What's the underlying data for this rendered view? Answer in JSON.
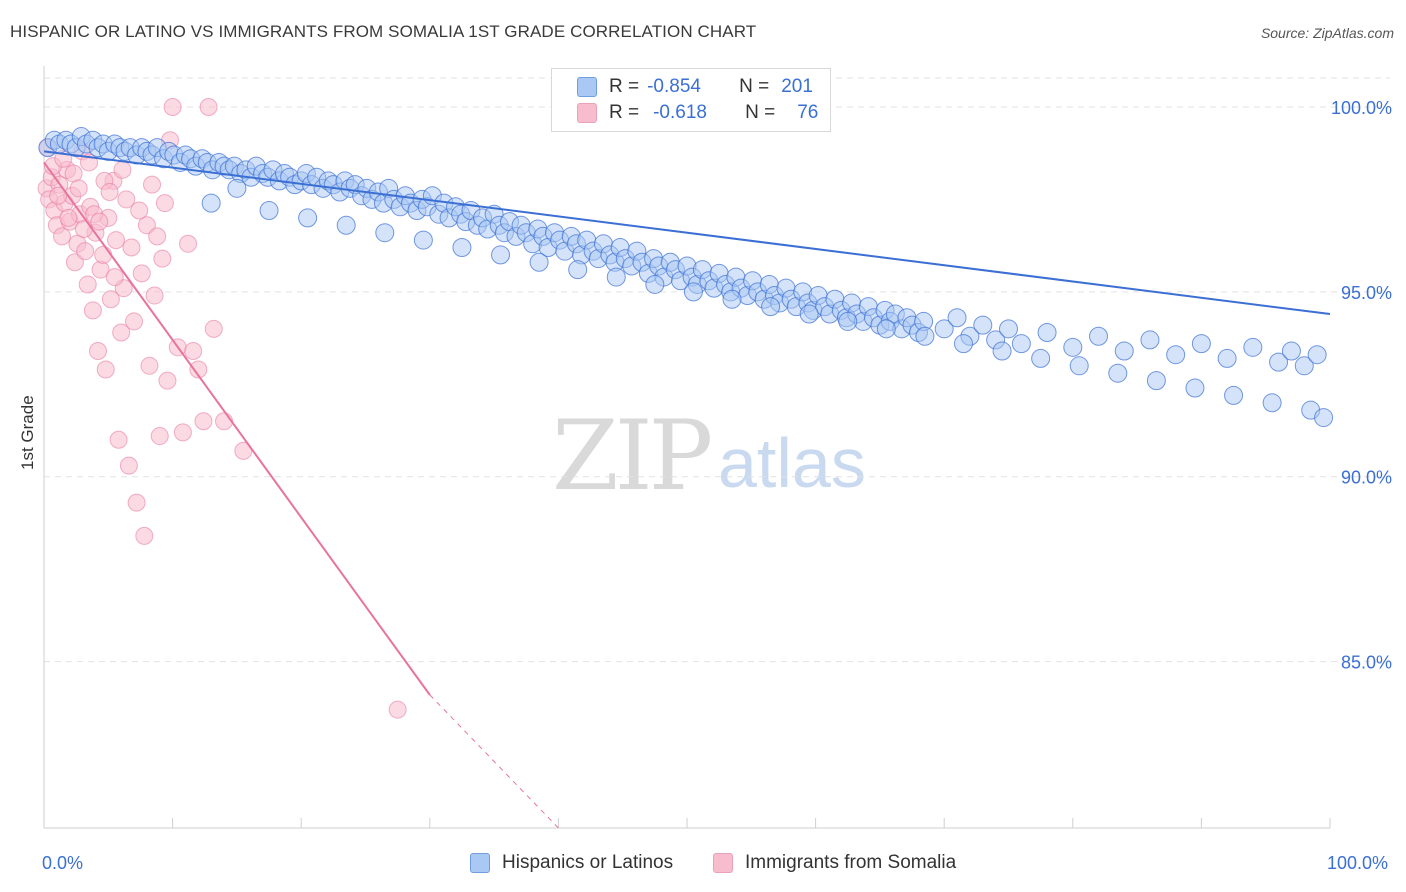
{
  "title": "HISPANIC OR LATINO VS IMMIGRANTS FROM SOMALIA 1ST GRADE CORRELATION CHART",
  "source": "Source: ZipAtlas.com",
  "watermark": {
    "zip": "ZIP",
    "atlas": "atlas"
  },
  "legend": {
    "r_label": "R =",
    "n_label": "N =",
    "rows": [
      {
        "r": "-0.854",
        "n": "201"
      },
      {
        "r": "-0.618",
        "n": "76"
      }
    ]
  },
  "colors": {
    "blue": "#3b6fd4",
    "blue_fill": "#a9c8f3",
    "pink": "#e8739c",
    "pink_fill": "#f7bccd",
    "grid": "#e2e2e2"
  },
  "chart_data": {
    "type": "scatter",
    "title": "HISPANIC OR LATINO VS IMMIGRANTS FROM SOMALIA 1ST GRADE CORRELATION CHART",
    "xlabel": "",
    "ylabel": "1st Grade",
    "xlim": [
      0,
      100
    ],
    "ylim": [
      80.5,
      101.0
    ],
    "x_ticks_labels": [
      "0.0%",
      "100.0%"
    ],
    "y_ticks": [
      85,
      90,
      95,
      100
    ],
    "y_tick_labels": [
      "85.0%",
      "90.0%",
      "95.0%",
      "100.0%"
    ],
    "grid": true,
    "legend_position": "top-center",
    "series": [
      {
        "name": "Hispanics or Latinos",
        "r": -0.854,
        "n": 201,
        "trend": {
          "x": [
            0,
            100
          ],
          "y": [
            98.8,
            94.4
          ]
        },
        "points": [
          [
            0.3,
            98.9
          ],
          [
            0.8,
            99.1
          ],
          [
            1.2,
            99.0
          ],
          [
            1.7,
            99.1
          ],
          [
            2.1,
            99.0
          ],
          [
            2.5,
            98.9
          ],
          [
            2.9,
            99.2
          ],
          [
            3.3,
            99.0
          ],
          [
            3.8,
            99.1
          ],
          [
            4.2,
            98.9
          ],
          [
            4.6,
            99.0
          ],
          [
            5.0,
            98.8
          ],
          [
            5.5,
            99.0
          ],
          [
            5.9,
            98.9
          ],
          [
            6.3,
            98.8
          ],
          [
            6.7,
            98.9
          ],
          [
            7.2,
            98.7
          ],
          [
            7.6,
            98.9
          ],
          [
            8.0,
            98.8
          ],
          [
            8.4,
            98.7
          ],
          [
            8.8,
            98.9
          ],
          [
            9.3,
            98.6
          ],
          [
            9.7,
            98.8
          ],
          [
            10.1,
            98.7
          ],
          [
            10.6,
            98.5
          ],
          [
            11.0,
            98.7
          ],
          [
            11.4,
            98.6
          ],
          [
            11.8,
            98.4
          ],
          [
            12.3,
            98.6
          ],
          [
            12.7,
            98.5
          ],
          [
            13.1,
            98.3
          ],
          [
            13.6,
            98.5
          ],
          [
            14.0,
            98.4
          ],
          [
            14.4,
            98.3
          ],
          [
            14.8,
            98.4
          ],
          [
            15.3,
            98.2
          ],
          [
            15.7,
            98.3
          ],
          [
            16.1,
            98.1
          ],
          [
            16.5,
            98.4
          ],
          [
            17.0,
            98.2
          ],
          [
            17.4,
            98.1
          ],
          [
            17.8,
            98.3
          ],
          [
            18.3,
            98.0
          ],
          [
            18.7,
            98.2
          ],
          [
            19.1,
            98.1
          ],
          [
            19.5,
            97.9
          ],
          [
            20.0,
            98.0
          ],
          [
            20.4,
            98.2
          ],
          [
            20.8,
            97.9
          ],
          [
            21.2,
            98.1
          ],
          [
            21.7,
            97.8
          ],
          [
            22.1,
            98.0
          ],
          [
            22.5,
            97.9
          ],
          [
            23.0,
            97.7
          ],
          [
            23.4,
            98.0
          ],
          [
            23.8,
            97.8
          ],
          [
            24.2,
            97.9
          ],
          [
            24.7,
            97.6
          ],
          [
            25.1,
            97.8
          ],
          [
            25.5,
            97.5
          ],
          [
            26.0,
            97.7
          ],
          [
            26.4,
            97.4
          ],
          [
            26.8,
            97.8
          ],
          [
            27.2,
            97.5
          ],
          [
            27.7,
            97.3
          ],
          [
            28.1,
            97.6
          ],
          [
            28.5,
            97.4
          ],
          [
            29.0,
            97.2
          ],
          [
            29.4,
            97.5
          ],
          [
            29.8,
            97.3
          ],
          [
            30.2,
            97.6
          ],
          [
            30.7,
            97.1
          ],
          [
            31.1,
            97.4
          ],
          [
            31.5,
            97.0
          ],
          [
            32.0,
            97.3
          ],
          [
            32.4,
            97.1
          ],
          [
            32.8,
            96.9
          ],
          [
            33.2,
            97.2
          ],
          [
            33.7,
            96.8
          ],
          [
            34.1,
            97.0
          ],
          [
            34.5,
            96.7
          ],
          [
            35.0,
            97.1
          ],
          [
            35.4,
            96.8
          ],
          [
            35.8,
            96.6
          ],
          [
            36.2,
            96.9
          ],
          [
            36.7,
            96.5
          ],
          [
            37.1,
            96.8
          ],
          [
            37.5,
            96.6
          ],
          [
            38.0,
            96.3
          ],
          [
            38.4,
            96.7
          ],
          [
            38.8,
            96.5
          ],
          [
            39.2,
            96.2
          ],
          [
            39.7,
            96.6
          ],
          [
            40.1,
            96.4
          ],
          [
            40.5,
            96.1
          ],
          [
            41.0,
            96.5
          ],
          [
            41.4,
            96.3
          ],
          [
            41.8,
            96.0
          ],
          [
            42.2,
            96.4
          ],
          [
            42.7,
            96.1
          ],
          [
            43.1,
            95.9
          ],
          [
            43.5,
            96.3
          ],
          [
            44.0,
            96.0
          ],
          [
            44.4,
            95.8
          ],
          [
            44.8,
            96.2
          ],
          [
            45.2,
            95.9
          ],
          [
            45.7,
            95.7
          ],
          [
            46.1,
            96.1
          ],
          [
            46.5,
            95.8
          ],
          [
            47.0,
            95.5
          ],
          [
            47.4,
            95.9
          ],
          [
            47.8,
            95.7
          ],
          [
            48.2,
            95.4
          ],
          [
            48.7,
            95.8
          ],
          [
            49.1,
            95.6
          ],
          [
            49.5,
            95.3
          ],
          [
            50.0,
            95.7
          ],
          [
            50.4,
            95.4
          ],
          [
            50.8,
            95.2
          ],
          [
            51.2,
            95.6
          ],
          [
            51.7,
            95.3
          ],
          [
            52.1,
            95.1
          ],
          [
            52.5,
            95.5
          ],
          [
            53.0,
            95.2
          ],
          [
            53.4,
            95.0
          ],
          [
            53.8,
            95.4
          ],
          [
            54.2,
            95.1
          ],
          [
            54.7,
            94.9
          ],
          [
            55.1,
            95.3
          ],
          [
            55.5,
            95.0
          ],
          [
            56.0,
            94.8
          ],
          [
            56.4,
            95.2
          ],
          [
            56.8,
            94.9
          ],
          [
            57.2,
            94.7
          ],
          [
            57.7,
            95.1
          ],
          [
            58.1,
            94.8
          ],
          [
            58.5,
            94.6
          ],
          [
            59.0,
            95.0
          ],
          [
            59.4,
            94.7
          ],
          [
            59.8,
            94.5
          ],
          [
            60.2,
            94.9
          ],
          [
            60.7,
            94.6
          ],
          [
            61.1,
            94.4
          ],
          [
            61.5,
            94.8
          ],
          [
            62.0,
            94.5
          ],
          [
            62.4,
            94.3
          ],
          [
            62.8,
            94.7
          ],
          [
            63.2,
            94.4
          ],
          [
            63.7,
            94.2
          ],
          [
            64.1,
            94.6
          ],
          [
            64.5,
            94.3
          ],
          [
            65.0,
            94.1
          ],
          [
            65.4,
            94.5
          ],
          [
            65.8,
            94.2
          ],
          [
            66.2,
            94.4
          ],
          [
            66.7,
            94.0
          ],
          [
            67.1,
            94.3
          ],
          [
            67.5,
            94.1
          ],
          [
            68.0,
            93.9
          ],
          [
            68.4,
            94.2
          ],
          [
            70.0,
            94.0
          ],
          [
            71.0,
            94.3
          ],
          [
            72.0,
            93.8
          ],
          [
            73.0,
            94.1
          ],
          [
            74.0,
            93.7
          ],
          [
            75.0,
            94.0
          ],
          [
            76.0,
            93.6
          ],
          [
            78.0,
            93.9
          ],
          [
            80.0,
            93.5
          ],
          [
            82.0,
            93.8
          ],
          [
            84.0,
            93.4
          ],
          [
            86.0,
            93.7
          ],
          [
            88.0,
            93.3
          ],
          [
            90.0,
            93.6
          ],
          [
            92.0,
            93.2
          ],
          [
            94.0,
            93.5
          ],
          [
            96.0,
            93.1
          ],
          [
            97.0,
            93.4
          ],
          [
            98.0,
            93.0
          ],
          [
            99.0,
            93.3
          ],
          [
            13.0,
            97.4
          ],
          [
            15.0,
            97.8
          ],
          [
            17.5,
            97.2
          ],
          [
            20.5,
            97.0
          ],
          [
            23.5,
            96.8
          ],
          [
            26.5,
            96.6
          ],
          [
            29.5,
            96.4
          ],
          [
            32.5,
            96.2
          ],
          [
            35.5,
            96.0
          ],
          [
            38.5,
            95.8
          ],
          [
            41.5,
            95.6
          ],
          [
            44.5,
            95.4
          ],
          [
            47.5,
            95.2
          ],
          [
            50.5,
            95.0
          ],
          [
            53.5,
            94.8
          ],
          [
            56.5,
            94.6
          ],
          [
            59.5,
            94.4
          ],
          [
            62.5,
            94.2
          ],
          [
            65.5,
            94.0
          ],
          [
            68.5,
            93.8
          ],
          [
            71.5,
            93.6
          ],
          [
            74.5,
            93.4
          ],
          [
            77.5,
            93.2
          ],
          [
            80.5,
            93.0
          ],
          [
            83.5,
            92.8
          ],
          [
            86.5,
            92.6
          ],
          [
            89.5,
            92.4
          ],
          [
            92.5,
            92.2
          ],
          [
            95.5,
            92.0
          ],
          [
            98.5,
            91.8
          ],
          [
            99.5,
            91.6
          ]
        ]
      },
      {
        "name": "Immigrants from Somalia",
        "r": -0.618,
        "n": 76,
        "trend": {
          "x": [
            0,
            30,
            40
          ],
          "y": [
            98.5,
            84.1,
            79.4
          ]
        },
        "points": [
          [
            0.2,
            97.8
          ],
          [
            0.4,
            97.5
          ],
          [
            0.6,
            98.1
          ],
          [
            0.8,
            97.2
          ],
          [
            1.0,
            96.8
          ],
          [
            1.2,
            97.9
          ],
          [
            1.4,
            96.5
          ],
          [
            1.6,
            97.4
          ],
          [
            1.8,
            98.3
          ],
          [
            2.0,
            96.9
          ],
          [
            2.2,
            97.6
          ],
          [
            2.4,
            95.8
          ],
          [
            2.6,
            96.3
          ],
          [
            2.8,
            97.1
          ],
          [
            3.0,
            98.8
          ],
          [
            3.2,
            96.1
          ],
          [
            3.4,
            95.2
          ],
          [
            3.6,
            97.3
          ],
          [
            3.8,
            94.5
          ],
          [
            4.0,
            96.6
          ],
          [
            4.2,
            93.4
          ],
          [
            4.4,
            95.6
          ],
          [
            4.6,
            96.0
          ],
          [
            4.8,
            92.9
          ],
          [
            5.0,
            97.0
          ],
          [
            5.2,
            94.8
          ],
          [
            5.4,
            98.0
          ],
          [
            5.6,
            96.4
          ],
          [
            5.8,
            91.0
          ],
          [
            6.0,
            93.9
          ],
          [
            6.2,
            95.1
          ],
          [
            6.4,
            97.5
          ],
          [
            6.6,
            90.3
          ],
          [
            6.8,
            96.2
          ],
          [
            7.0,
            94.2
          ],
          [
            7.2,
            89.3
          ],
          [
            7.4,
            97.2
          ],
          [
            7.6,
            95.5
          ],
          [
            7.8,
            88.4
          ],
          [
            8.0,
            96.8
          ],
          [
            8.2,
            93.0
          ],
          [
            8.4,
            97.9
          ],
          [
            8.6,
            94.9
          ],
          [
            8.8,
            96.5
          ],
          [
            9.0,
            91.1
          ],
          [
            9.2,
            95.9
          ],
          [
            9.4,
            97.4
          ],
          [
            9.6,
            92.6
          ],
          [
            9.8,
            99.1
          ],
          [
            10.0,
            100.0
          ],
          [
            10.4,
            93.5
          ],
          [
            10.8,
            91.2
          ],
          [
            11.2,
            96.3
          ],
          [
            11.6,
            93.4
          ],
          [
            12.0,
            92.9
          ],
          [
            12.4,
            91.5
          ],
          [
            12.8,
            100.0
          ],
          [
            13.2,
            94.0
          ],
          [
            14.0,
            91.5
          ],
          [
            15.5,
            90.7
          ],
          [
            27.5,
            83.7
          ],
          [
            0.3,
            98.9
          ],
          [
            0.7,
            98.4
          ],
          [
            1.1,
            97.6
          ],
          [
            1.5,
            98.6
          ],
          [
            1.9,
            97.0
          ],
          [
            2.3,
            98.2
          ],
          [
            2.7,
            97.8
          ],
          [
            3.1,
            96.7
          ],
          [
            3.5,
            98.5
          ],
          [
            3.9,
            97.1
          ],
          [
            4.3,
            96.9
          ],
          [
            4.7,
            98.0
          ],
          [
            5.1,
            97.7
          ],
          [
            5.5,
            95.4
          ],
          [
            6.1,
            98.3
          ]
        ]
      }
    ]
  },
  "bottom_legend": [
    {
      "label": "Hispanics or Latinos"
    },
    {
      "label": "Immigrants from Somalia"
    }
  ]
}
